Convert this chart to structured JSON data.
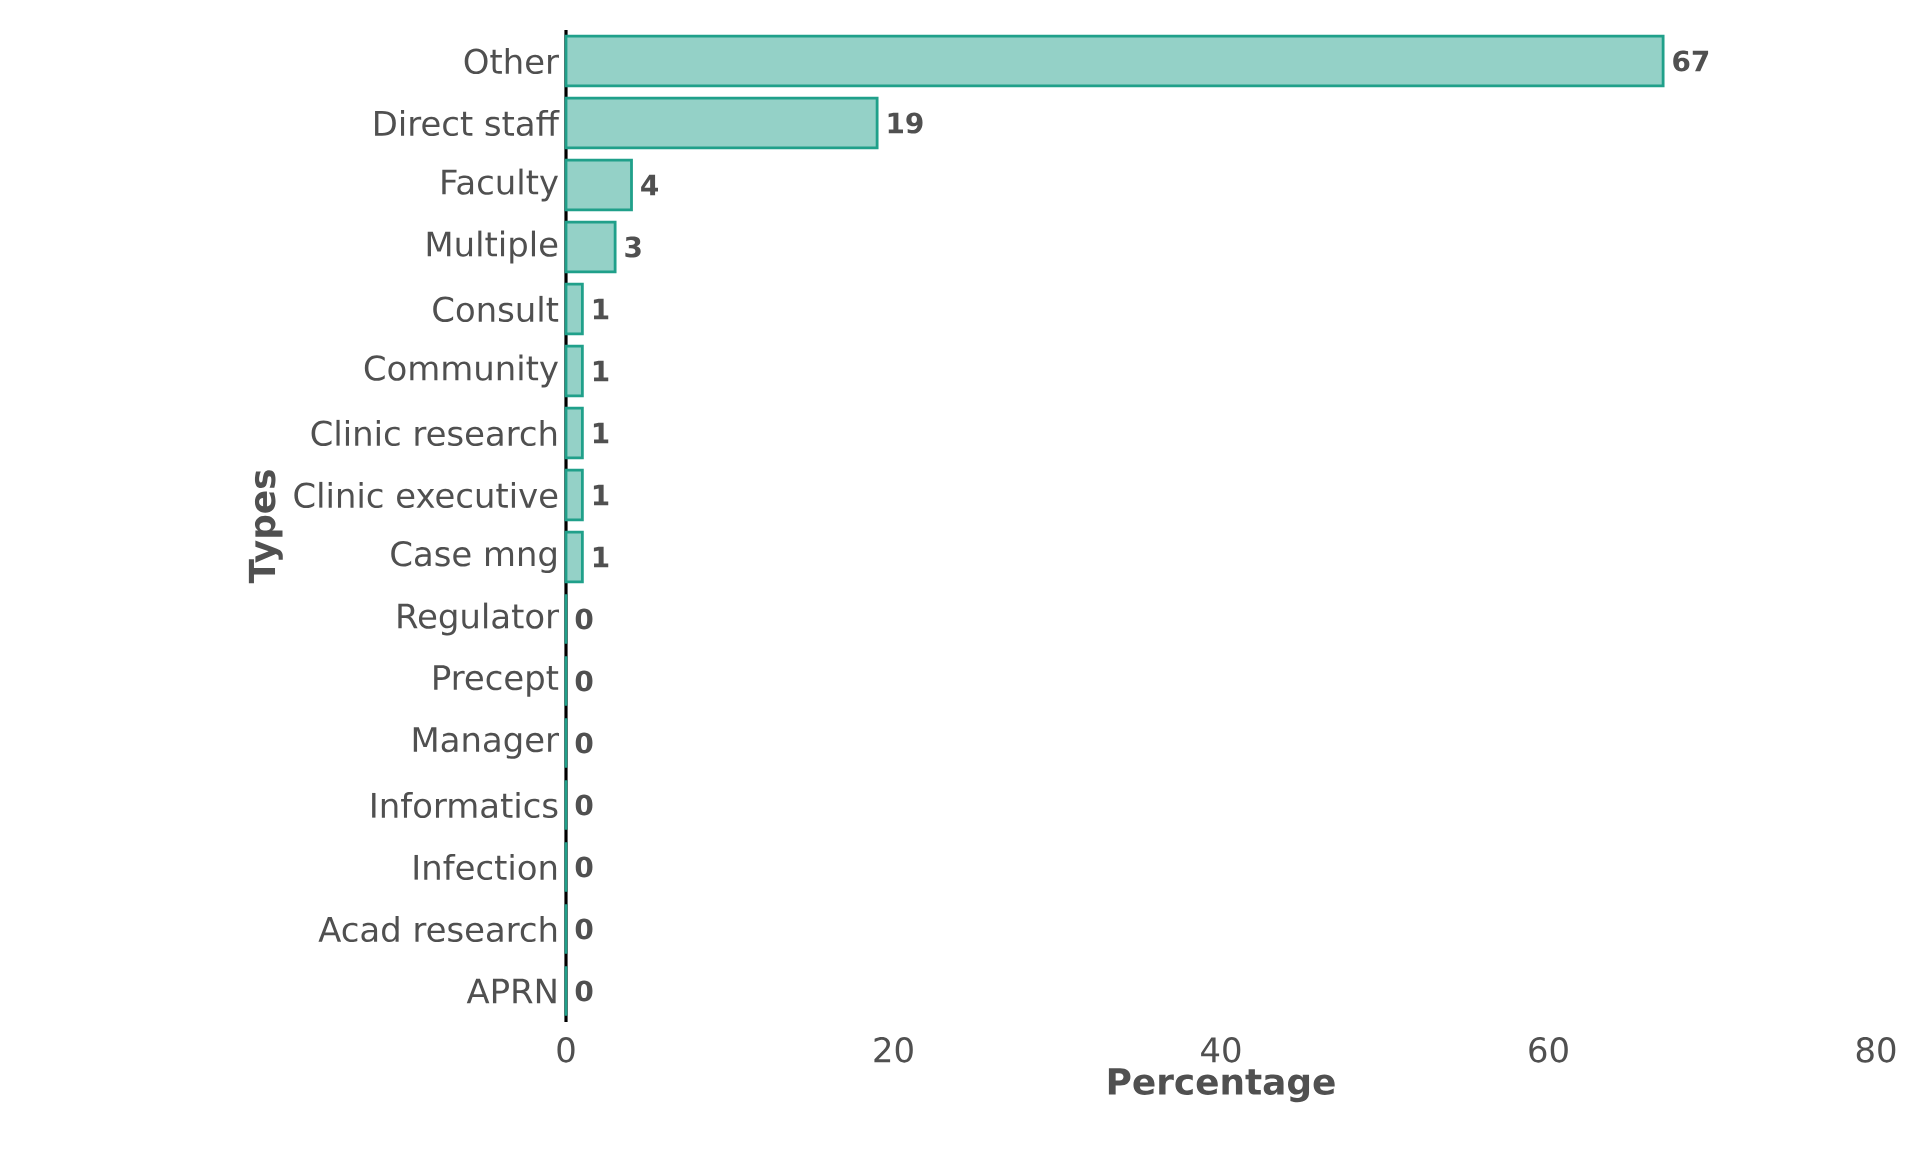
{
  "chart_data": {
    "type": "bar",
    "orientation": "horizontal",
    "xlabel": "Percentage",
    "ylabel": "Types",
    "categories": [
      "Other",
      "Direct staff",
      "Faculty",
      "Multiple",
      "Consult",
      "Community",
      "Clinic research",
      "Clinic executive",
      "Case mng",
      "Regulator",
      "Precept",
      "Manager",
      "Informatics",
      "Infection",
      "Acad research",
      "APRN"
    ],
    "values": [
      67,
      19,
      4,
      3,
      1,
      1,
      1,
      1,
      1,
      0,
      0,
      0,
      0,
      0,
      0,
      0
    ],
    "color": "#20a08a",
    "xlim": [
      0,
      80
    ],
    "xticks": [
      0,
      20,
      40,
      60,
      80
    ],
    "data_labels": true
  }
}
